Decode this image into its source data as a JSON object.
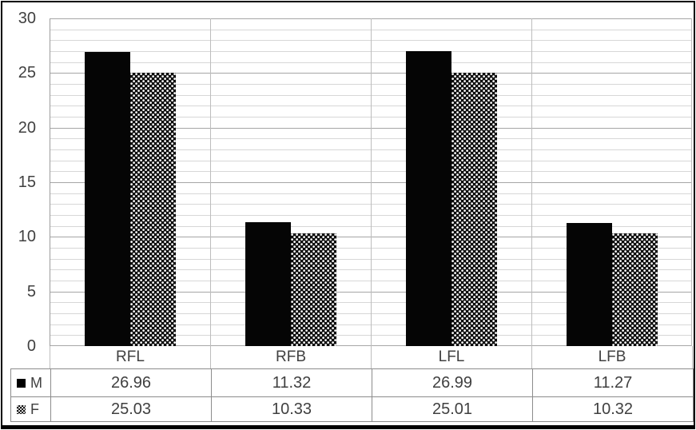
{
  "chart_data": {
    "type": "bar",
    "title": "",
    "xlabel": "",
    "ylabel": "",
    "categories": [
      "RFL",
      "RFB",
      "LFL",
      "LFB"
    ],
    "series": [
      {
        "name": "M",
        "values": [
          26.96,
          11.32,
          26.99,
          11.27
        ],
        "fill": "solid-black"
      },
      {
        "name": "F",
        "values": [
          25.03,
          10.33,
          25.01,
          10.32
        ],
        "fill": "dotted-checker-pattern"
      }
    ],
    "ylim": [
      0,
      30
    ],
    "y_major_step": 5,
    "y_minor_step": 1,
    "y_tick_labels": [
      "0",
      "5",
      "10",
      "15",
      "20",
      "25",
      "30"
    ],
    "grid": "horizontal minor every 1 unit, major every 5; vertical category borders",
    "legend_position": "data-table-left-column"
  },
  "table": {
    "rows": [
      {
        "key_label": "M",
        "marker": "solid-square-icon",
        "values": [
          "26.96",
          "11.32",
          "26.99",
          "11.27"
        ]
      },
      {
        "key_label": "F",
        "marker": "dotted-square-icon",
        "values": [
          "25.03",
          "10.33",
          "25.01",
          "10.32"
        ]
      }
    ]
  },
  "colors": {
    "bar_m": "#050505",
    "bar_f_base": "#0a0a0a",
    "bar_f_dots": "#fafafa",
    "grid_minor": "#d7d7d7",
    "grid_major": "#a6a6a6",
    "category_border": "#bdbdbd",
    "table_border": "#8c8c8c",
    "text": "#404040",
    "figure_border": "#000000"
  }
}
